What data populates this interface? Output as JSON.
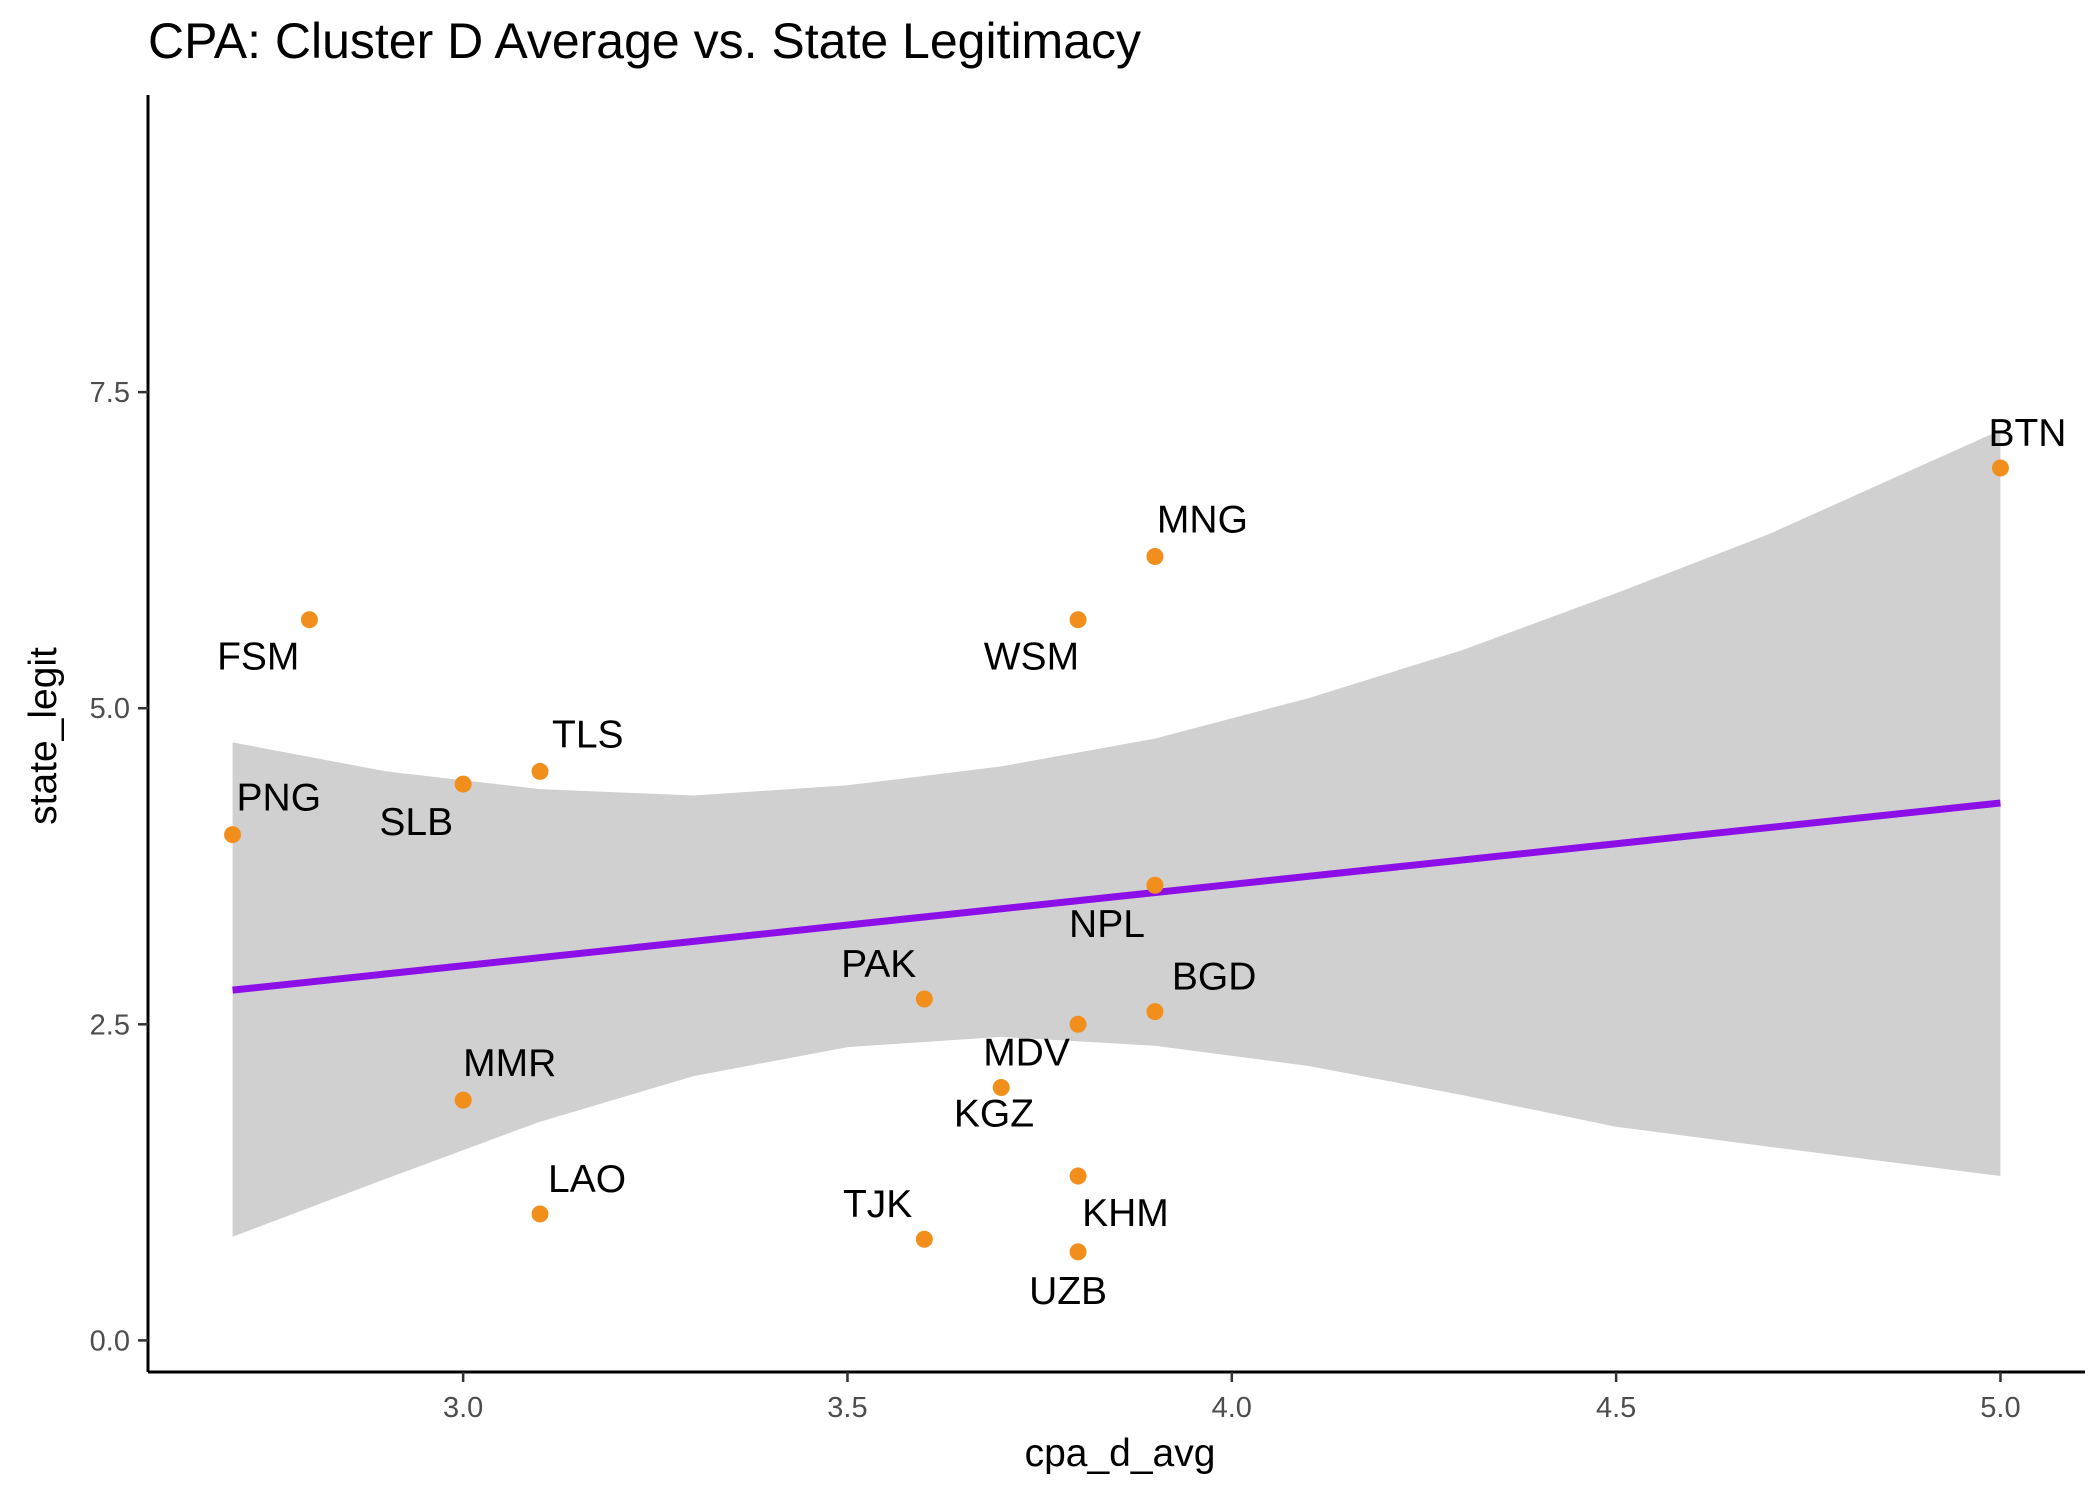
{
  "chart_data": {
    "type": "scatter",
    "title": "CPA: Cluster D Average vs. State Legitimacy",
    "xlabel": "cpa_d_avg",
    "ylabel": "state_legit",
    "xlim": [
      2.59,
      5.11
    ],
    "ylim": [
      -0.25,
      9.85
    ],
    "xticks": [
      "3.0",
      "3.5",
      "4.0",
      "4.5",
      "5.0"
    ],
    "yticks": [
      "0.0",
      "2.5",
      "5.0",
      "7.5"
    ],
    "grid": false,
    "point_color": "#F28E1C",
    "fit_color": "#8B0FE6",
    "band_color": "#C8C8C8",
    "points": [
      {
        "label": "BTN",
        "x": 5.0,
        "y": 6.9
      },
      {
        "label": "MNG",
        "x": 3.9,
        "y": 6.2
      },
      {
        "label": "FSM",
        "x": 2.8,
        "y": 5.7
      },
      {
        "label": "WSM",
        "x": 3.8,
        "y": 5.7
      },
      {
        "label": "TLS",
        "x": 3.1,
        "y": 4.5
      },
      {
        "label": "SLB",
        "x": 3.0,
        "y": 4.4
      },
      {
        "label": "PNG",
        "x": 2.7,
        "y": 4.0
      },
      {
        "label": "NPL",
        "x": 3.9,
        "y": 3.6
      },
      {
        "label": "PAK",
        "x": 3.6,
        "y": 2.7
      },
      {
        "label": "BGD",
        "x": 3.9,
        "y": 2.6
      },
      {
        "label": "KGZ",
        "x": 3.8,
        "y": 2.5
      },
      {
        "label": "MDV",
        "x": 3.7,
        "y": 2.0
      },
      {
        "label": "MMR",
        "x": 3.0,
        "y": 1.9
      },
      {
        "label": "KHM",
        "x": 3.8,
        "y": 1.3
      },
      {
        "label": "LAO",
        "x": 3.1,
        "y": 1.0
      },
      {
        "label": "TJK",
        "x": 3.6,
        "y": 0.8
      },
      {
        "label": "UZB",
        "x": 3.8,
        "y": 0.7
      }
    ],
    "fit_line": {
      "x": [
        2.7,
        5.0
      ],
      "y": [
        2.77,
        4.25
      ]
    },
    "confidence_band": {
      "x": [
        2.7,
        2.9,
        3.1,
        3.3,
        3.5,
        3.7,
        3.9,
        4.1,
        4.3,
        4.5,
        4.7,
        5.0
      ],
      "upper": [
        4.73,
        4.5,
        4.36,
        4.31,
        4.39,
        4.54,
        4.76,
        5.08,
        5.46,
        5.91,
        6.38,
        7.2
      ],
      "lower": [
        0.82,
        1.28,
        1.73,
        2.09,
        2.32,
        2.4,
        2.33,
        2.17,
        1.94,
        1.69,
        1.53,
        1.3
      ]
    }
  }
}
